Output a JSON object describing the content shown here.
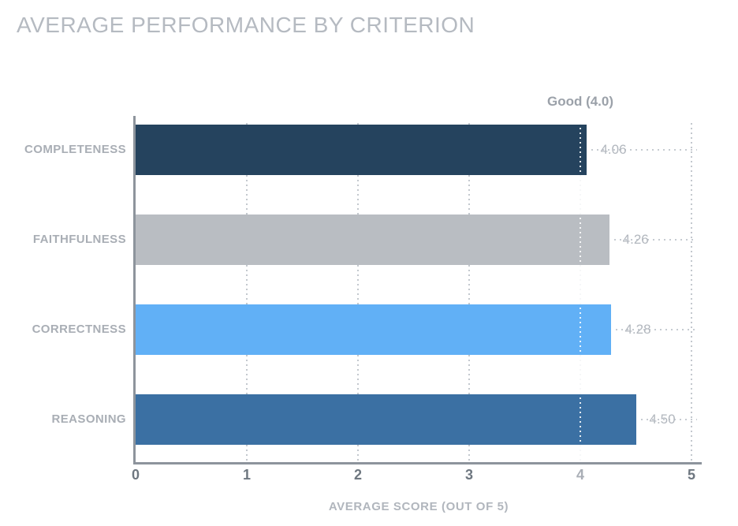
{
  "title": "AVERAGE PERFORMANCE BY CRITERION",
  "chart_data": {
    "type": "bar",
    "orientation": "horizontal",
    "title": "AVERAGE PERFORMANCE BY CRITERION",
    "categories": [
      "COMPLETENESS",
      "FAITHFULNESS",
      "CORRECTNESS",
      "REASONING"
    ],
    "values": [
      4.06,
      4.26,
      4.28,
      4.5
    ],
    "value_labels": [
      "4.06",
      "4.26",
      "4.28",
      "4.50"
    ],
    "series_colors": [
      "#25435e",
      "#b9bdc2",
      "#61b0f6",
      "#3b70a3"
    ],
    "xlabel": "AVERAGE SCORE (OUT OF 5)",
    "xlim": [
      0,
      5
    ],
    "xticks": [
      "0",
      "1",
      "2",
      "3",
      "4",
      "5"
    ],
    "reference_line": {
      "value": 4.0,
      "label": "Good (4.0)"
    },
    "grid": "dotted-vertical",
    "legend": "none"
  },
  "colors": {
    "title_text": "#b5bac1",
    "category_label": "#a9aeb5",
    "value_label": "#b2b7be",
    "tick_label": "#6e7780",
    "tick_label_at_reference": "#a9aeb6",
    "axis_line": "#8d949c",
    "gridline_dots": "#c3c8ce",
    "reference_label": "#9ba1a9",
    "background": "#ffffff"
  }
}
